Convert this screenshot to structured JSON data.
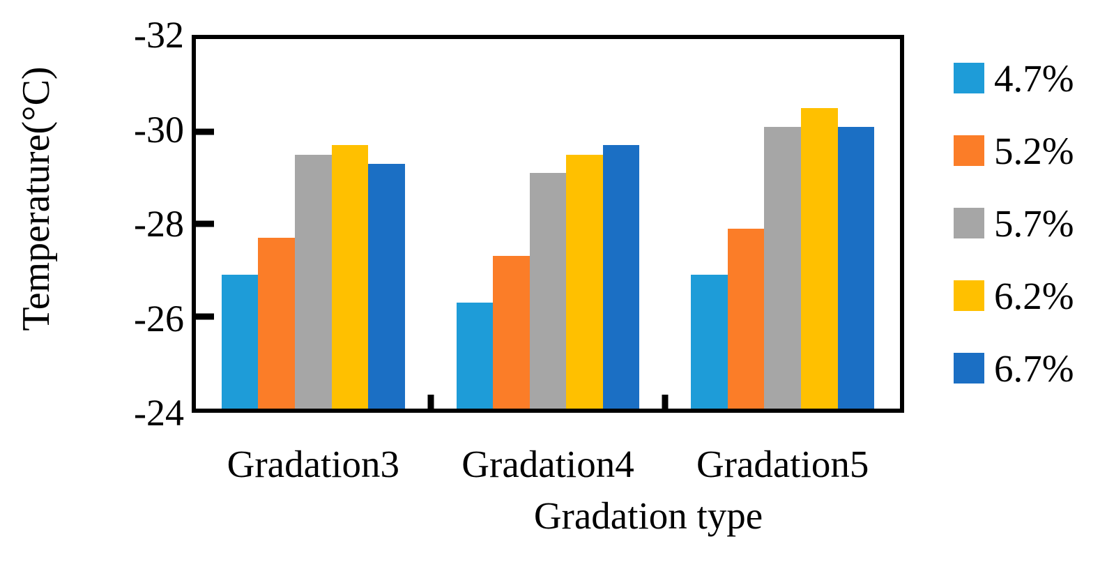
{
  "chart_data": {
    "type": "bar",
    "title": "",
    "xlabel": "Gradation type",
    "ylabel": "Temperature(°C)",
    "categories": [
      "Gradation3",
      "Gradation4",
      "Gradation5"
    ],
    "series": [
      {
        "name": "4.7%",
        "color": "#1E9CD8",
        "values": [
          -26.9,
          -26.3,
          -26.9
        ]
      },
      {
        "name": "5.2%",
        "color": "#FB7D28",
        "values": [
          -27.7,
          -27.3,
          -27.9
        ]
      },
      {
        "name": "5.7%",
        "color": "#A6A6A6",
        "values": [
          -29.5,
          -29.1,
          -30.1
        ]
      },
      {
        "name": "6.2%",
        "color": "#FFC000",
        "values": [
          -29.7,
          -29.5,
          -30.5
        ]
      },
      {
        "name": "6.7%",
        "color": "#1B6FC4",
        "values": [
          -29.3,
          -29.7,
          -30.1
        ]
      }
    ],
    "y_axis": {
      "min": -32,
      "max": -24,
      "inverted_direction": "values increase downward, -32 at top",
      "ticks": [
        -32,
        -30,
        -28,
        -26,
        -24
      ],
      "tick_labels": [
        "-32",
        "-30",
        "-28",
        "-26",
        "-24"
      ]
    },
    "baseline": -24,
    "grid": false,
    "legend_position": "right",
    "axis_color": "#000000",
    "background_color": "#FFFFFF"
  }
}
